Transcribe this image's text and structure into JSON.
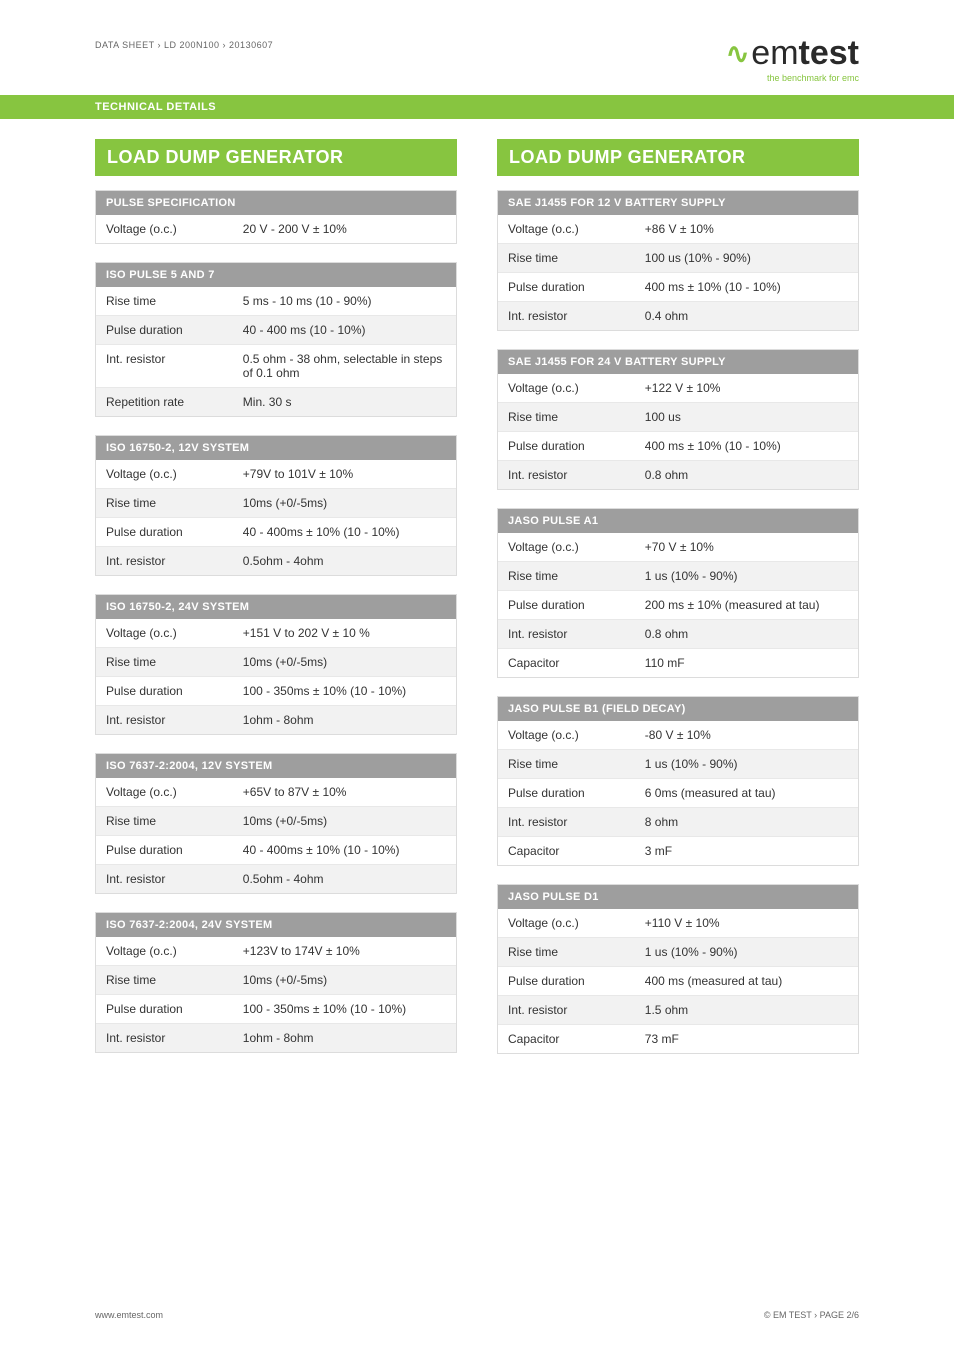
{
  "meta": {
    "breadcrumb": "DATA SHEET › LD 200N100 › 20130607"
  },
  "logo": {
    "brand_em": "em",
    "brand_test": "test",
    "tagline": "the benchmark for emc"
  },
  "techBar": "TECHNICAL DETAILS",
  "left": {
    "title": "LOAD DUMP GENERATOR",
    "tables": [
      {
        "header": "PULSE SPECIFICATION",
        "rows": [
          {
            "k": "Voltage (o.c.)",
            "v": "20 V - 200 V ± 10%"
          }
        ]
      },
      {
        "header": "ISO PULSE 5 AND 7",
        "rows": [
          {
            "k": "Rise time",
            "v": "5 ms - 10 ms (10 - 90%)"
          },
          {
            "k": "Pulse duration",
            "v": "40 - 400 ms (10 - 10%)"
          },
          {
            "k": "Int. resistor",
            "v": "0.5 ohm - 38 ohm, selectable in steps of 0.1 ohm"
          },
          {
            "k": "Repetition rate",
            "v": "Min. 30 s"
          }
        ]
      },
      {
        "header": "ISO 16750-2, 12V SYSTEM",
        "rows": [
          {
            "k": "Voltage (o.c.)",
            "v": "+79V to 101V ± 10%"
          },
          {
            "k": "Rise time",
            "v": "10ms (+0/-5ms)"
          },
          {
            "k": "Pulse duration",
            "v": "40 - 400ms ± 10% (10 - 10%)"
          },
          {
            "k": "Int. resistor",
            "v": "0.5ohm - 4ohm"
          }
        ]
      },
      {
        "header": "ISO 16750-2, 24V SYSTEM",
        "rows": [
          {
            "k": "Voltage (o.c.)",
            "v": "+151 V to 202 V ± 10 %"
          },
          {
            "k": "Rise time",
            "v": "10ms (+0/-5ms)"
          },
          {
            "k": "Pulse duration",
            "v": "100 - 350ms ± 10% (10 - 10%)"
          },
          {
            "k": "Int. resistor",
            "v": "1ohm - 8ohm"
          }
        ]
      },
      {
        "header": "ISO 7637-2:2004, 12V SYSTEM",
        "rows": [
          {
            "k": "Voltage (o.c.)",
            "v": "+65V to 87V ± 10%"
          },
          {
            "k": "Rise time",
            "v": "10ms (+0/-5ms)"
          },
          {
            "k": "Pulse duration",
            "v": "40 - 400ms ± 10% (10 - 10%)"
          },
          {
            "k": "Int. resistor",
            "v": "0.5ohm - 4ohm"
          }
        ]
      },
      {
        "header": "ISO 7637-2:2004, 24V SYSTEM",
        "rows": [
          {
            "k": "Voltage (o.c.)",
            "v": "+123V to 174V ± 10%"
          },
          {
            "k": "Rise time",
            "v": "10ms (+0/-5ms)"
          },
          {
            "k": "Pulse duration",
            "v": "100 - 350ms ± 10% (10 - 10%)"
          },
          {
            "k": "Int. resistor",
            "v": "1ohm - 8ohm"
          }
        ]
      }
    ]
  },
  "right": {
    "title": "LOAD DUMP GENERATOR",
    "tables": [
      {
        "header": "SAE J1455 FOR 12 V BATTERY SUPPLY",
        "rows": [
          {
            "k": "Voltage (o.c.)",
            "v": "+86 V ± 10%"
          },
          {
            "k": "Rise time",
            "v": "100 us (10% - 90%)"
          },
          {
            "k": "Pulse duration",
            "v": "400 ms ± 10% (10 - 10%)"
          },
          {
            "k": "Int. resistor",
            "v": "0.4 ohm"
          }
        ]
      },
      {
        "header": "SAE J1455 FOR 24 V BATTERY SUPPLY",
        "rows": [
          {
            "k": "Voltage (o.c.)",
            "v": "+122 V ± 10%"
          },
          {
            "k": "Rise time",
            "v": "100 us"
          },
          {
            "k": "Pulse duration",
            "v": "400 ms ± 10% (10 - 10%)"
          },
          {
            "k": "Int. resistor",
            "v": "0.8 ohm"
          }
        ]
      },
      {
        "header": "JASO PULSE A1",
        "rows": [
          {
            "k": "Voltage (o.c.)",
            "v": "+70 V ± 10%"
          },
          {
            "k": "Rise time",
            "v": "1 us (10% - 90%)"
          },
          {
            "k": "Pulse duration",
            "v": "200 ms ± 10% (measured at tau)"
          },
          {
            "k": "Int. resistor",
            "v": "0.8 ohm"
          },
          {
            "k": "Capacitor",
            "v": "110 mF"
          }
        ]
      },
      {
        "header": "JASO PULSE B1 (FIELD DECAY)",
        "rows": [
          {
            "k": "Voltage (o.c.)",
            "v": "-80 V ± 10%"
          },
          {
            "k": "Rise time",
            "v": "1 us (10% - 90%)"
          },
          {
            "k": "Pulse duration",
            "v": "6 0ms (measured at tau)"
          },
          {
            "k": "Int. resistor",
            "v": "8 ohm"
          },
          {
            "k": "Capacitor",
            "v": "3 mF"
          }
        ]
      },
      {
        "header": "JASO PULSE D1",
        "rows": [
          {
            "k": "Voltage (o.c.)",
            "v": "+110 V ± 10%"
          },
          {
            "k": "Rise time",
            "v": "1 us (10% - 90%)"
          },
          {
            "k": "Pulse duration",
            "v": "400 ms (measured at tau)"
          },
          {
            "k": "Int. resistor",
            "v": "1.5 ohm"
          },
          {
            "k": "Capacitor",
            "v": "73 mF"
          }
        ]
      }
    ]
  },
  "footer": {
    "left": "www.emtest.com",
    "right": "© EM TEST › PAGE 2/6"
  }
}
